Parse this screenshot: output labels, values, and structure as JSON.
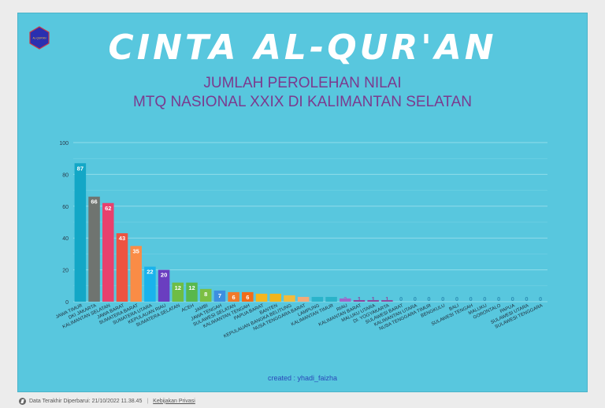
{
  "header": {
    "title": "CINTA AL-QUR'AN",
    "subtitle_line1": "JUMLAH PEROLEHAN NILAI",
    "subtitle_line2": "MTQ NASIONAL XXIX DI KALIMANTAN SELATAN",
    "logo_text": "AL-QUR'AN"
  },
  "credit": "created : yhadi_faizha",
  "footer": {
    "updated_label": "Data Terakhir Diperbarui: 21/10/2022 11.38.45",
    "privacy_link": "Kebijakan Privasi"
  },
  "colors": {
    "background": "#58c7de",
    "title": "#ffffff",
    "subtitle": "#7b3a8e",
    "gridline": "#8fdcea"
  },
  "chart_data": {
    "type": "bar",
    "title": "",
    "xlabel": "",
    "ylabel": "",
    "ylim": [
      0,
      100
    ],
    "yticks": [
      0,
      20,
      40,
      60,
      80,
      100
    ],
    "grid": true,
    "categories": [
      "JAWA TIMUR",
      "DKI JAKARTA",
      "KALIMANTAN SELATAN",
      "JAWA BARAT",
      "SUMATERA BARAT",
      "SUMATERA UTARA",
      "KEPULAUAN RIAU",
      "SUMATERA SELATAN",
      "ACEH",
      "JAMBI",
      "JAWA TENGAH",
      "SULAWESI SELATAN",
      "KALIMANTAN TENGAH",
      "PAPUA BARAT",
      "BANTEN",
      "KEPULAUAN BANGKA BELITUNG",
      "NUSA TENGGARA BARAT",
      "LAMPUNG",
      "KALIMANTAN TIMUR",
      "RIAU",
      "KALIMANTAN BARAT",
      "MALUKU UTARA",
      "DI. YOGYAKARTA",
      "SULAWESI BARAT",
      "KALIMANTAN UTARA",
      "NUSA TENGGARA TIMUR",
      "BENGKULU",
      "BALI",
      "SULAWESI TENGAH",
      "MALUKU",
      "GORONTALO",
      "PAPUA",
      "SULAWESI UTARA",
      "SULAWESI TENGGARA"
    ],
    "values": [
      87,
      66,
      62,
      43,
      35,
      22,
      20,
      12,
      12,
      8,
      7,
      6,
      6,
      5,
      5,
      4,
      3,
      3,
      3,
      2,
      1,
      1,
      1,
      0,
      0,
      0,
      0,
      0,
      0,
      0,
      0,
      0,
      0,
      0
    ],
    "colors": [
      "#13a7c6",
      "#6f7470",
      "#e8406d",
      "#ee5340",
      "#fa8c46",
      "#19b3ec",
      "#6a3ec0",
      "#6ebd44",
      "#58b84d",
      "#7cbf43",
      "#3d8fe0",
      "#f07a2a",
      "#f26c18",
      "#f4b61e",
      "#f1b51c",
      "#f2bb3c",
      "#f3aa78",
      "#2bb4cb",
      "#2ab3c8",
      "#9e66c9",
      "#8c449e",
      "#8a4a9f",
      "#8e4ca0",
      "#3fbedb",
      "#3fbedb",
      "#3fbedb",
      "#3fbedb",
      "#3fbedb",
      "#3fbedb",
      "#3fbedb",
      "#3fbedb",
      "#3fbedb",
      "#3fbedb",
      "#3fbedb"
    ]
  }
}
